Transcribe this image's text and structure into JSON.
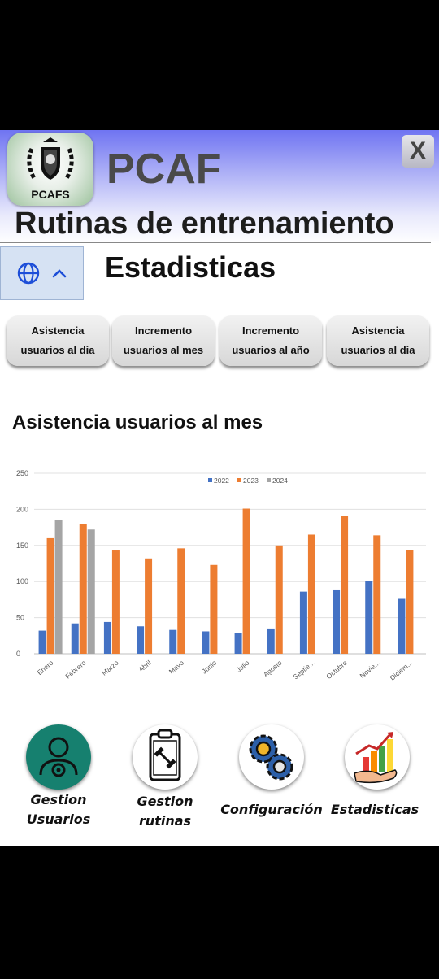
{
  "header": {
    "logo_text": "PCAFS",
    "brand": "PCAF",
    "close_label": "X",
    "app_title": "Rutinas de entrenamiento",
    "section_title": "Estadisticas"
  },
  "tabs": [
    {
      "line1": "Asistencia",
      "line2": "usuarios al dia"
    },
    {
      "line1": "Incremento",
      "line2": "usuarios al mes"
    },
    {
      "line1": "Incremento",
      "line2": "usuarios al año"
    },
    {
      "line1": "Asistencia",
      "line2": "usuarios al dia"
    }
  ],
  "chart_title": "Asistencia usuarios al mes",
  "chart_data": {
    "type": "bar",
    "categories": [
      "Enero",
      "Febrero",
      "Marzo",
      "Abril",
      "Mayo",
      "Junio",
      "Julio",
      "Agosto",
      "Septie...",
      "Octubre",
      "Novie...",
      "Diciem..."
    ],
    "series": [
      {
        "name": "2022",
        "color": "#4472c4",
        "values": [
          32,
          42,
          44,
          38,
          33,
          31,
          29,
          35,
          86,
          89,
          101,
          76
        ]
      },
      {
        "name": "2023",
        "color": "#ed7d31",
        "values": [
          160,
          180,
          143,
          132,
          146,
          123,
          201,
          150,
          165,
          191,
          164,
          144
        ]
      },
      {
        "name": "2024",
        "color": "#a5a5a5",
        "values": [
          185,
          172,
          null,
          null,
          null,
          null,
          null,
          null,
          null,
          null,
          null,
          null
        ]
      }
    ],
    "ylim": [
      0,
      250
    ],
    "yticks": [
      0,
      50,
      100,
      150,
      200,
      250
    ],
    "legend": "top-center",
    "grid": true
  },
  "nav": [
    {
      "line1": "Gestion",
      "line2": "Usuarios"
    },
    {
      "line1": "Gestion",
      "line2": "rutinas"
    },
    {
      "line1": "Configuración",
      "line2": ""
    },
    {
      "line1": "Estadisticas",
      "line2": ""
    }
  ]
}
